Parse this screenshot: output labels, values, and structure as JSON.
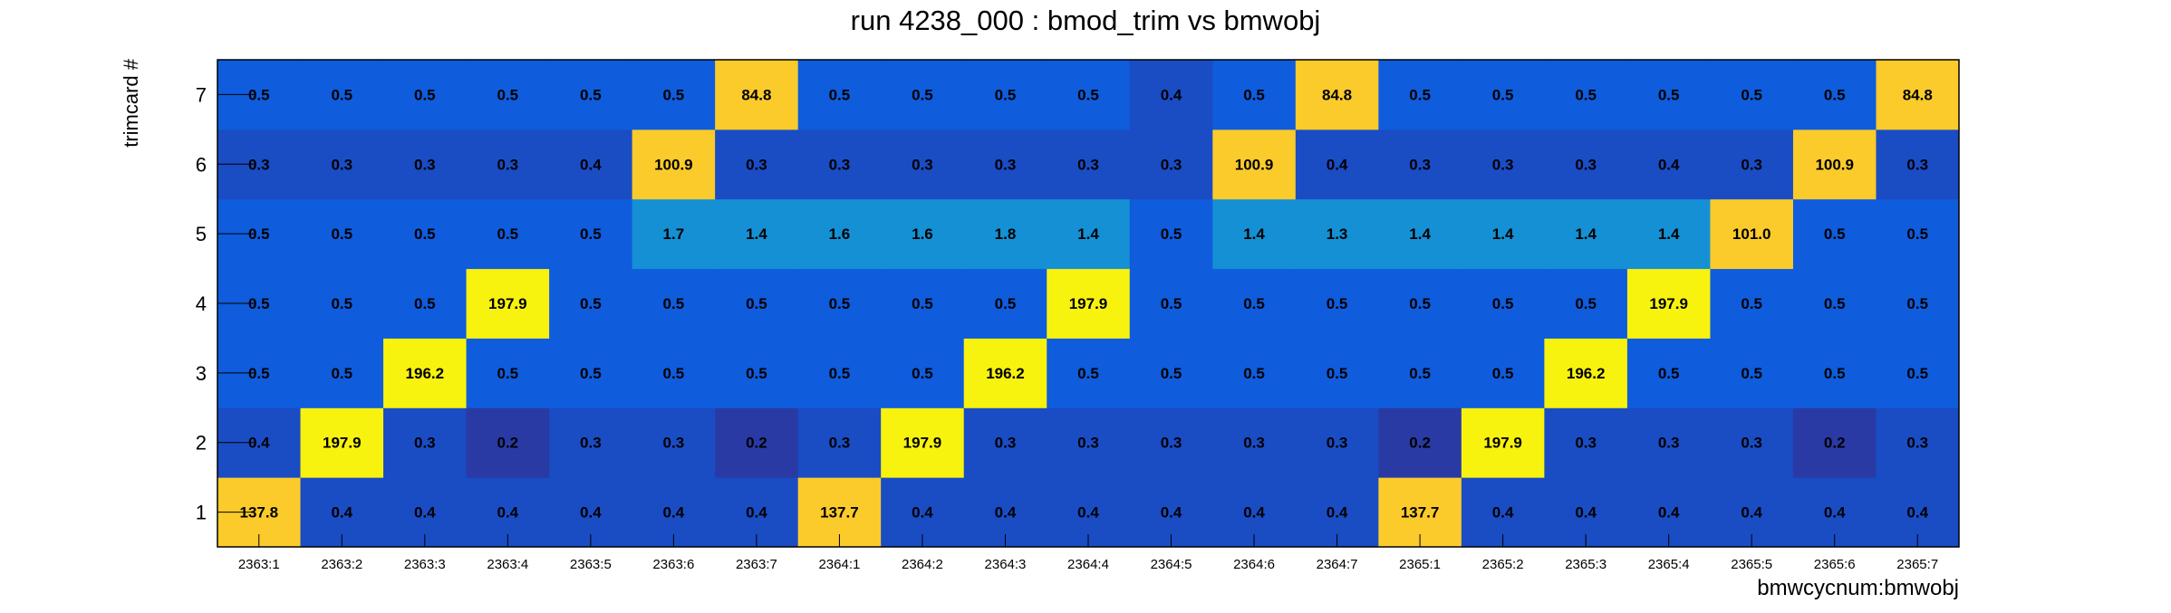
{
  "chart_data": {
    "type": "heatmap",
    "title": "run 4238_000 : bmod_trim vs bmwobj",
    "xlabel": "bmwcycnum:bmwobj",
    "ylabel": "trimcard #",
    "x_categories": [
      "2363:1",
      "2363:2",
      "2363:3",
      "2363:4",
      "2363:5",
      "2363:6",
      "2363:7",
      "2364:1",
      "2364:2",
      "2364:3",
      "2364:4",
      "2364:5",
      "2364:6",
      "2364:7",
      "2365:1",
      "2365:2",
      "2365:3",
      "2365:4",
      "2365:5",
      "2365:6",
      "2365:7"
    ],
    "y_categories": [
      "1",
      "2",
      "3",
      "4",
      "5",
      "6",
      "7"
    ],
    "values": [
      [
        "137.8",
        "0.4",
        "0.4",
        "0.4",
        "0.4",
        "0.4",
        "0.4",
        "137.7",
        "0.4",
        "0.4",
        "0.4",
        "0.4",
        "0.4",
        "0.4",
        "137.7",
        "0.4",
        "0.4",
        "0.4",
        "0.4",
        "0.4",
        "0.4"
      ],
      [
        "0.4",
        "197.9",
        "0.3",
        "0.2",
        "0.3",
        "0.3",
        "0.2",
        "0.3",
        "197.9",
        "0.3",
        "0.3",
        "0.3",
        "0.3",
        "0.3",
        "0.2",
        "197.9",
        "0.3",
        "0.3",
        "0.3",
        "0.2",
        "0.3"
      ],
      [
        "0.5",
        "0.5",
        "196.2",
        "0.5",
        "0.5",
        "0.5",
        "0.5",
        "0.5",
        "0.5",
        "196.2",
        "0.5",
        "0.5",
        "0.5",
        "0.5",
        "0.5",
        "0.5",
        "196.2",
        "0.5",
        "0.5",
        "0.5",
        "0.5"
      ],
      [
        "0.5",
        "0.5",
        "0.5",
        "197.9",
        "0.5",
        "0.5",
        "0.5",
        "0.5",
        "0.5",
        "0.5",
        "197.9",
        "0.5",
        "0.5",
        "0.5",
        "0.5",
        "0.5",
        "0.5",
        "197.9",
        "0.5",
        "0.5",
        "0.5"
      ],
      [
        "0.5",
        "0.5",
        "0.5",
        "0.5",
        "0.5",
        "1.7",
        "1.4",
        "1.6",
        "1.6",
        "1.8",
        "1.4",
        "0.5",
        "1.4",
        "1.3",
        "1.4",
        "1.4",
        "1.4",
        "1.4",
        "101.0",
        "0.5",
        "0.5"
      ],
      [
        "0.3",
        "0.3",
        "0.3",
        "0.3",
        "0.4",
        "100.9",
        "0.3",
        "0.3",
        "0.3",
        "0.3",
        "0.3",
        "0.3",
        "100.9",
        "0.4",
        "0.3",
        "0.3",
        "0.3",
        "0.4",
        "0.3",
        "100.9",
        "0.3"
      ],
      [
        "0.5",
        "0.5",
        "0.5",
        "0.5",
        "0.5",
        "0.5",
        "84.8",
        "0.5",
        "0.5",
        "0.5",
        "0.5",
        "0.4",
        "0.5",
        "84.8",
        "0.5",
        "0.5",
        "0.5",
        "0.5",
        "0.5",
        "0.5",
        "84.8"
      ]
    ],
    "colors": {
      "very_low": "#2a3aa4",
      "low": "#1a4cc4",
      "base": "#0f5cdc",
      "mid": "#1590d4",
      "orange": "#fbcb2b",
      "yellow": "#f8f20f",
      "axis": "#000000",
      "text": "#000000"
    },
    "legend": "none",
    "grid": false
  }
}
